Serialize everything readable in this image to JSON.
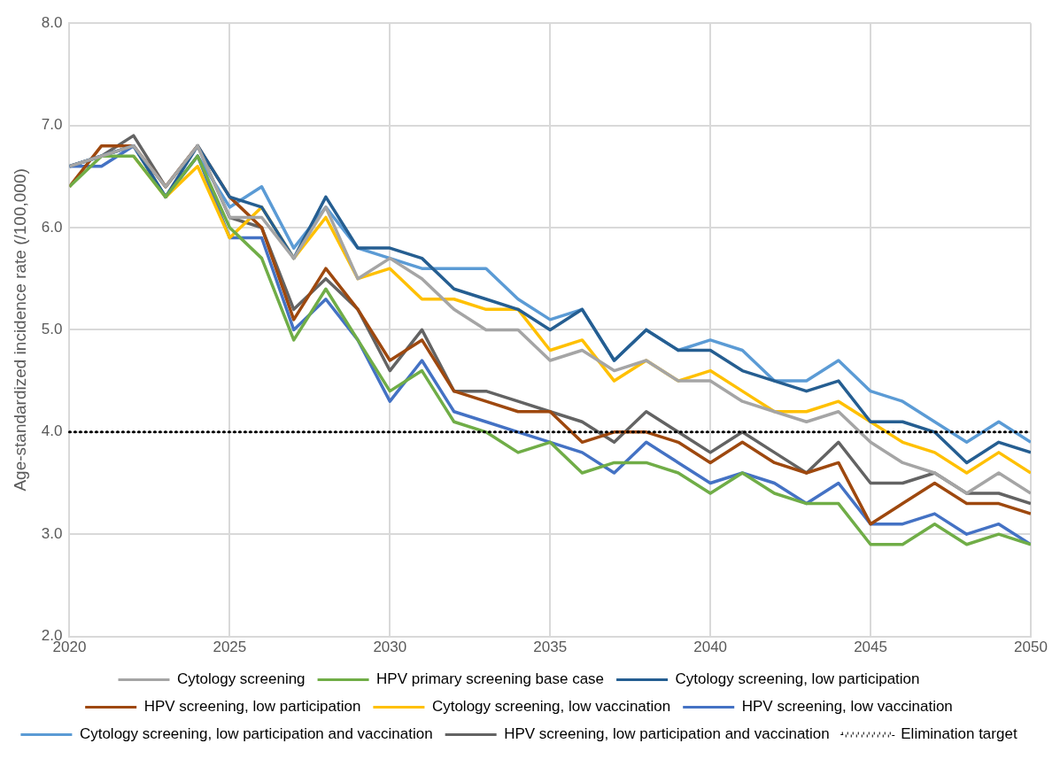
{
  "chart_data": {
    "type": "line",
    "ylabel": "Age-standardized incidence rate (/100,000)",
    "x": [
      2020,
      2021,
      2022,
      2023,
      2024,
      2025,
      2026,
      2027,
      2028,
      2029,
      2030,
      2031,
      2032,
      2033,
      2034,
      2035,
      2036,
      2037,
      2038,
      2039,
      2040,
      2041,
      2042,
      2043,
      2044,
      2045,
      2046,
      2047,
      2048,
      2049,
      2050
    ],
    "xlim": [
      2020,
      2050
    ],
    "xticks": [
      2020,
      2025,
      2030,
      2035,
      2040,
      2045,
      2050
    ],
    "ylim": [
      2,
      8
    ],
    "yticks": [
      {
        "value": 2,
        "label": "2.0"
      },
      {
        "value": 3,
        "label": "3.0"
      },
      {
        "value": 4,
        "label": "4.0"
      },
      {
        "value": 5,
        "label": "5.0"
      },
      {
        "value": 6,
        "label": "6.0"
      },
      {
        "value": 7,
        "label": "7.0"
      },
      {
        "value": 8,
        "label": "8.0"
      }
    ],
    "grid": true,
    "legend": "bottom",
    "marker": "none",
    "line_style": "solid",
    "series": [
      {
        "name": "Cytology screening",
        "color": "#a5a5a5",
        "values": [
          6.6,
          6.7,
          6.8,
          6.4,
          6.8,
          6.1,
          6.1,
          5.7,
          6.2,
          5.5,
          5.7,
          5.5,
          5.2,
          5.0,
          5.0,
          4.7,
          4.8,
          4.6,
          4.7,
          4.5,
          4.5,
          4.3,
          4.2,
          4.1,
          4.2,
          3.9,
          3.7,
          3.6,
          3.4,
          3.6,
          3.4
        ]
      },
      {
        "name": "HPV primary screening base case",
        "color": "#70ad47",
        "values": [
          6.4,
          6.7,
          6.7,
          6.3,
          6.7,
          6.0,
          5.7,
          4.9,
          5.4,
          4.9,
          4.4,
          4.6,
          4.1,
          4.0,
          3.8,
          3.9,
          3.6,
          3.7,
          3.7,
          3.6,
          3.4,
          3.6,
          3.4,
          3.3,
          3.3,
          2.9,
          2.9,
          3.1,
          2.9,
          3.0,
          2.9
        ]
      },
      {
        "name": "Cytology screening, low participation",
        "color": "#255e91",
        "values": [
          6.6,
          6.7,
          6.8,
          6.3,
          6.8,
          6.3,
          6.2,
          5.7,
          6.3,
          5.8,
          5.8,
          5.7,
          5.4,
          5.3,
          5.2,
          5.0,
          5.2,
          4.7,
          5.0,
          4.8,
          4.8,
          4.6,
          4.5,
          4.4,
          4.5,
          4.1,
          4.1,
          4.0,
          3.7,
          3.9,
          3.8
        ]
      },
      {
        "name": "HPV screening, low participation",
        "color": "#9e480e",
        "values": [
          6.4,
          6.8,
          6.8,
          6.4,
          6.8,
          6.3,
          6.0,
          5.1,
          5.6,
          5.2,
          4.7,
          4.9,
          4.4,
          4.3,
          4.2,
          4.2,
          3.9,
          4.0,
          4.0,
          3.9,
          3.7,
          3.9,
          3.7,
          3.6,
          3.7,
          3.1,
          3.3,
          3.5,
          3.3,
          3.3,
          3.2
        ]
      },
      {
        "name": "Cytology screening, low vaccination",
        "color": "#ffc000",
        "values": [
          null,
          null,
          6.7,
          6.3,
          6.6,
          5.9,
          6.2,
          5.7,
          6.1,
          5.5,
          5.6,
          5.3,
          5.3,
          5.2,
          5.2,
          4.8,
          4.9,
          4.5,
          4.7,
          4.5,
          4.6,
          4.4,
          4.2,
          4.2,
          4.3,
          4.1,
          3.9,
          3.8,
          3.6,
          3.8,
          3.6
        ]
      },
      {
        "name": "HPV screening, low vaccination",
        "color": "#4472c4",
        "values": [
          6.6,
          6.6,
          6.8,
          6.3,
          6.7,
          5.9,
          5.9,
          5.0,
          5.3,
          4.9,
          4.3,
          4.7,
          4.2,
          4.1,
          4.0,
          3.9,
          3.8,
          3.6,
          3.9,
          3.7,
          3.5,
          3.6,
          3.5,
          3.3,
          3.5,
          3.1,
          3.1,
          3.2,
          3.0,
          3.1,
          2.9
        ]
      },
      {
        "name": "Cytology screening, low participation and vaccination",
        "color": "#5b9bd5",
        "values": [
          6.6,
          6.7,
          6.8,
          6.3,
          6.7,
          6.2,
          6.4,
          5.8,
          6.2,
          5.8,
          5.7,
          5.6,
          5.6,
          5.6,
          5.3,
          5.1,
          5.2,
          4.7,
          5.0,
          4.8,
          4.9,
          4.8,
          4.5,
          4.5,
          4.7,
          4.4,
          4.3,
          4.1,
          3.9,
          4.1,
          3.9
        ]
      },
      {
        "name": "HPV screening, low participation and vaccination",
        "color": "#636363",
        "values": [
          6.6,
          6.7,
          6.9,
          6.4,
          6.8,
          6.1,
          6.0,
          5.2,
          5.5,
          5.2,
          4.6,
          5.0,
          4.4,
          4.4,
          4.3,
          4.2,
          4.1,
          3.9,
          4.2,
          4.0,
          3.8,
          4.0,
          3.8,
          3.6,
          3.9,
          3.5,
          3.5,
          3.6,
          3.4,
          3.4,
          3.3
        ]
      }
    ],
    "ref_lines": [
      {
        "axis": "y",
        "value": 4,
        "label": "Elimination target",
        "color": "#000000",
        "line_style": "dotted"
      }
    ]
  }
}
